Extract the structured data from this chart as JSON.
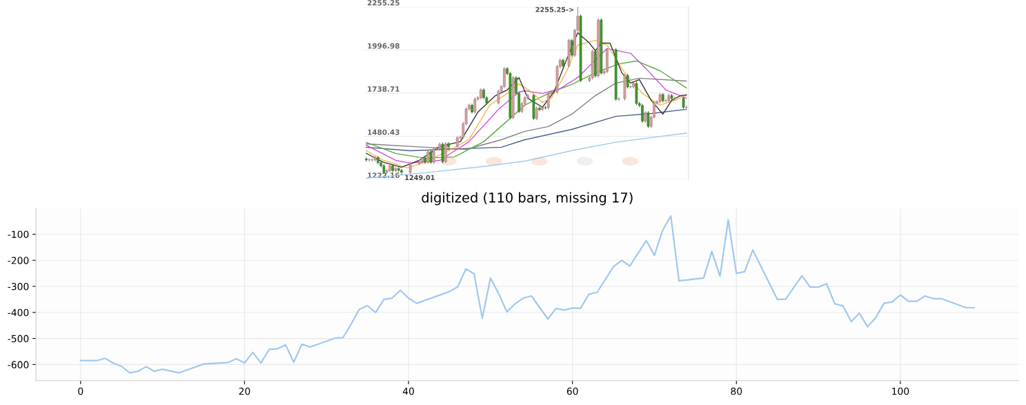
{
  "chart_data": [
    {
      "type": "candlestick",
      "categories": [
        null,
        null,
        null,
        null,
        null,
        null,
        null,
        null,
        null,
        null,
        null,
        null,
        null,
        null,
        null,
        null,
        null,
        null,
        null,
        null,
        null,
        null,
        null,
        null,
        null,
        null,
        null,
        null,
        null,
        null,
        null,
        null,
        null,
        null,
        null,
        null,
        null,
        null,
        null,
        null,
        null,
        null,
        null,
        null,
        null,
        null,
        null,
        null,
        null,
        null,
        null,
        null,
        null,
        null,
        null,
        null,
        null,
        null,
        null,
        null,
        null,
        null,
        null,
        null,
        null,
        null,
        null,
        null,
        null,
        null,
        null,
        null,
        null,
        null,
        null,
        null,
        null,
        null,
        null,
        null,
        null,
        null,
        null,
        null,
        null,
        null,
        null,
        null,
        null,
        null,
        null,
        null,
        null,
        null,
        null,
        null,
        null,
        null,
        null,
        null,
        null,
        null,
        null,
        null,
        null,
        null,
        null,
        null,
        null,
        null
      ],
      "ohlc": [
        [
          1345,
          1355,
          1329,
          1339
        ],
        [
          1339,
          1349,
          1329,
          1339
        ],
        [
          1339,
          1349,
          1329,
          1339
        ],
        [
          1339,
          1362,
          1329,
          1352
        ],
        [
          1352,
          1362,
          1313,
          1323
        ],
        [
          1323,
          1333,
          1294,
          1304
        ],
        [
          1304,
          1314,
          1255,
          1265
        ],
        [
          1265,
          1285,
          1255,
          1275
        ],
        [
          1275,
          1313,
          1265,
          1303
        ],
        [
          1303,
          1313,
          1265,
          1275
        ],
        [
          1275,
          1297,
          1265,
          1287
        ],
        [
          1287,
          1297,
          1266,
          1276
        ],
        [
          1276,
          1286,
          1249.01,
          1265
        ],
        null,
        null,
        [
          1265,
          1328,
          1255,
          1318
        ],
        null,
        null,
        [
          1318,
          1338,
          1308,
          1328
        ],
        [
          1328,
          1359,
          1318,
          1349
        ],
        [
          1349,
          1359,
          1315,
          1325
        ],
        [
          1325,
          1398,
          1315,
          1388
        ],
        [
          1388,
          1398,
          1315,
          1325
        ],
        [
          1325,
          1415,
          1315,
          1405
        ],
        [
          1405,
          1418,
          1395,
          1408
        ],
        [
          1408,
          1443,
          1398,
          1433
        ],
        [
          1433,
          1443,
          1319,
          1329
        ],
        [
          1329,
          1446,
          1319,
          1436
        ],
        [
          1436,
          1446,
          1409,
          1419
        ],
        null,
        null,
        [
          1419,
          1482,
          1409,
          1472
        ],
        [
          1472,
          1485,
          1462,
          1475
        ],
        [
          1475,
          1566,
          1465,
          1556
        ],
        [
          1556,
          1654,
          1546,
          1644
        ],
        [
          1644,
          1676,
          1634,
          1666
        ],
        [
          1666,
          1676,
          1616,
          1626
        ],
        [
          1626,
          1713,
          1616,
          1703
        ],
        [
          1703,
          1721,
          1693,
          1711
        ],
        [
          1711,
          1768,
          1701,
          1758
        ],
        [
          1758,
          1768,
          1701,
          1711
        ],
        [
          1711,
          1721,
          1670,
          1680
        ],
        null,
        null,
        null,
        [
          1680,
          1760,
          1670,
          1750
        ],
        [
          1750,
          1788,
          1740,
          1778
        ],
        [
          1778,
          1895,
          1768,
          1885
        ],
        [
          1885,
          1895,
          1846,
          1856
        ],
        [
          1856,
          1866,
          1582,
          1592
        ],
        [
          1592,
          1841,
          1582,
          1831
        ],
        [
          1831,
          1841,
          1728,
          1738
        ],
        [
          1738,
          1748,
          1619,
          1629
        ],
        [
          1629,
          1687,
          1619,
          1677
        ],
        [
          1677,
          1721,
          1667,
          1711
        ],
        [
          1711,
          1734,
          1701,
          1724
        ],
        null,
        [
          1724,
          1734,
          1577,
          1587
        ],
        [
          1587,
          1659,
          1577,
          1649
        ],
        [
          1649,
          1659,
          1630,
          1640
        ],
        [
          1640,
          1662,
          1630,
          1652
        ],
        [
          1652,
          1662,
          1641,
          1651
        ],
        [
          1651,
          1745,
          1641,
          1735
        ],
        [
          1735,
          1755,
          1725,
          1745
        ],
        null,
        [
          1745,
          1908,
          1735,
          1898
        ],
        [
          1898,
          1946,
          1888,
          1936
        ],
        [
          1936,
          1946,
          1892,
          1902
        ],
        null,
        [
          1902,
          2064,
          1892,
          2054
        ],
        [
          2054,
          2064,
          1956,
          1966
        ],
        [
          1966,
          2125,
          1956,
          2115
        ],
        [
          2115,
          2255.25,
          2105,
          2200
        ],
        [
          2200,
          2210,
          1804,
          1814
        ],
        null,
        null,
        [
          1814,
          1841,
          1804,
          1831
        ],
        [
          1831,
          1999,
          1821,
          1989
        ],
        [
          1989,
          1999,
          1832,
          1842
        ],
        [
          1842,
          2187,
          1832,
          2177
        ],
        [
          2177,
          2187,
          1849,
          1859
        ],
        [
          1859,
          1878,
          1849,
          1868
        ],
        [
          1868,
          2009,
          1858,
          1999
        ],
        null,
        null,
        [
          1999,
          2009,
          1693,
          1703
        ],
        [
          1703,
          1715,
          1693,
          1705
        ],
        null,
        [
          1705,
          1855,
          1695,
          1845
        ],
        [
          1845,
          1855,
          1766,
          1776
        ],
        [
          1776,
          1786,
          1766,
          1776
        ],
        [
          1776,
          1807,
          1766,
          1797
        ],
        [
          1797,
          1807,
          1667,
          1677
        ],
        [
          1677,
          1687,
          1655,
          1665
        ],
        [
          1665,
          1675,
          1561,
          1571
        ],
        [
          1571,
          1631,
          1561,
          1621
        ],
        [
          1621,
          1631,
          1530,
          1540
        ],
        [
          1540,
          1605,
          1530,
          1595
        ],
        [
          1595,
          1690,
          1585,
          1680
        ],
        [
          1680,
          1698,
          1670,
          1688
        ],
        [
          1688,
          1740,
          1678,
          1730
        ],
        [
          1730,
          1740,
          1683,
          1693
        ],
        [
          1693,
          1703,
          1683,
          1693
        ],
        [
          1693,
          1734,
          1683,
          1724
        ],
        [
          1724,
          1734,
          1698,
          1708
        ],
        [
          1708,
          1718,
          1698,
          1708
        ],
        null,
        null,
        [
          1708,
          1718,
          1644,
          1654
        ],
        [
          1654,
          1664,
          1644,
          1654
        ]
      ],
      "colors": [
        "#3d9a2a",
        "#d9a0a0",
        "#d9a0a0",
        "#d9a0a0",
        "#3d9a2a",
        "#3d9a2a",
        "#3d9a2a",
        "#d9a0a0",
        "#d9a0a0",
        "#3d9a2a",
        "#d9a0a0",
        "#3d9a2a",
        "#3d9a2a",
        null,
        null,
        "#d9a0a0",
        null,
        null,
        "#d9a0a0",
        "#d9a0a0",
        "#3d9a2a",
        "#d9a0a0",
        "#3d9a2a",
        "#d9a0a0",
        "#d9a0a0",
        "#d9a0a0",
        "#3d9a2a",
        "#d9a0a0",
        "#3d9a2a",
        null,
        null,
        "#d9a0a0",
        "#d9a0a0",
        "#d9a0a0",
        "#d9a0a0",
        "#d9a0a0",
        "#3d9a2a",
        "#d9a0a0",
        "#d9a0a0",
        "#d9a0a0",
        "#3d9a2a",
        "#3d9a2a",
        null,
        null,
        null,
        "#d9a0a0",
        "#d9a0a0",
        "#d9a0a0",
        "#3d9a2a",
        "#3d9a2a",
        "#d9a0a0",
        "#3d9a2a",
        "#3d9a2a",
        "#d9a0a0",
        "#d9a0a0",
        "#d9a0a0",
        null,
        "#3d9a2a",
        "#d9a0a0",
        "#3d9a2a",
        "#d9a0a0",
        "#3d9a2a",
        "#d9a0a0",
        "#d9a0a0",
        null,
        "#d9a0a0",
        "#d9a0a0",
        "#3d9a2a",
        null,
        "#d9a0a0",
        "#3d9a2a",
        "#d9a0a0",
        "#d9a0a0",
        "#3d9a2a",
        null,
        null,
        "#d9a0a0",
        "#d9a0a0",
        "#3d9a2a",
        "#d9a0a0",
        "#3d9a2a",
        "#d9a0a0",
        "#d9a0a0",
        null,
        null,
        "#3d9a2a",
        "#d9a0a0",
        null,
        "#d9a0a0",
        "#3d9a2a",
        "#d9a0a0",
        "#d9a0a0",
        "#3d9a2a",
        "#3d9a2a",
        "#3d9a2a",
        "#d9a0a0",
        "#3d9a2a",
        "#d9a0a0",
        "#d9a0a0",
        "#d9a0a0",
        "#d9a0a0",
        "#3d9a2a",
        "#d9a0a0",
        "#d9a0a0",
        "#3d9a2a",
        "#d9a0a0",
        null,
        null,
        "#3d9a2a",
        "#d9a0a0"
      ],
      "series": [
        {
          "type": "line",
          "color": "#9ccaf0",
          "values": [
            1230,
            null,
            null,
            null,
            null,
            null,
            null,
            null,
            null,
            null,
            null,
            null,
            null,
            null,
            null,
            null,
            null,
            null,
            null,
            null,
            1262,
            null,
            null,
            null,
            null,
            null,
            null,
            null,
            null,
            null,
            null,
            null,
            null,
            null,
            null,
            null,
            null,
            null,
            null,
            null,
            1300,
            null,
            null,
            null,
            null,
            null,
            null,
            null,
            null,
            null,
            null,
            null,
            null,
            null,
            1332,
            null,
            null,
            null,
            null,
            null,
            null,
            null,
            null,
            null,
            null,
            null,
            null,
            null,
            null,
            null,
            1395,
            null,
            null,
            null,
            null,
            null,
            null,
            null,
            null,
            null,
            null,
            null,
            null,
            null,
            null,
            1445,
            null,
            null,
            null,
            null,
            null,
            null,
            null,
            null,
            null,
            null,
            null,
            null,
            null,
            null,
            null,
            null,
            null,
            null,
            null,
            null,
            null,
            null,
            null,
            1500
          ]
        },
        {
          "type": "line",
          "color": "#4a5f8f",
          "values": [
            1415,
            null,
            null,
            null,
            null,
            null,
            null,
            null,
            null,
            null,
            null,
            null,
            null,
            null,
            null,
            1394,
            null,
            null,
            null,
            null,
            null,
            null,
            null,
            null,
            null,
            null,
            null,
            null,
            null,
            null,
            null,
            null,
            null,
            null,
            null,
            null,
            null,
            null,
            null,
            null,
            null,
            null,
            null,
            null,
            null,
            null,
            1415,
            null,
            null,
            null,
            null,
            null,
            null,
            null,
            1460,
            null,
            null,
            null,
            null,
            null,
            null,
            null,
            null,
            null,
            null,
            null,
            null,
            null,
            null,
            null,
            1522,
            null,
            null,
            null,
            null,
            null,
            null,
            null,
            null,
            null,
            null,
            null,
            null,
            null,
            null,
            1600,
            null,
            null,
            null,
            null,
            null,
            null,
            null,
            null,
            null,
            null,
            null,
            1617,
            null,
            null,
            null,
            null,
            null,
            null,
            null,
            null,
            null,
            null,
            null,
            1642
          ]
        },
        {
          "type": "line",
          "color": "#808080",
          "values": [
            1435,
            null,
            null,
            null,
            null,
            null,
            null,
            null,
            null,
            null,
            null,
            null,
            null,
            null,
            null,
            null,
            null,
            null,
            null,
            null,
            1415,
            null,
            null,
            null,
            null,
            null,
            null,
            null,
            null,
            null,
            null,
            null,
            null,
            null,
            1402,
            null,
            null,
            null,
            null,
            null,
            null,
            null,
            null,
            null,
            null,
            null,
            1460,
            null,
            null,
            null,
            null,
            null,
            null,
            null,
            1510,
            null,
            null,
            null,
            null,
            null,
            null,
            null,
            1539,
            null,
            null,
            null,
            null,
            null,
            null,
            null,
            1613,
            null,
            null,
            null,
            null,
            null,
            null,
            null,
            1724,
            null,
            null,
            null,
            null,
            null,
            null,
            1799,
            null,
            null,
            null,
            null,
            null,
            null,
            null,
            1828,
            null,
            null,
            null,
            null,
            null,
            null,
            null,
            null,
            null,
            null,
            null,
            null,
            null,
            null,
            null,
            1811
          ]
        },
        {
          "type": "line",
          "color": "#5aaa40",
          "values": [
            1444,
            null,
            null,
            null,
            null,
            null,
            null,
            null,
            null,
            null,
            1378,
            null,
            null,
            null,
            null,
            null,
            null,
            null,
            null,
            null,
            1349,
            null,
            null,
            null,
            null,
            null,
            null,
            null,
            null,
            null,
            1357,
            null,
            null,
            null,
            null,
            null,
            null,
            null,
            null,
            null,
            1448,
            null,
            null,
            null,
            null,
            null,
            null,
            null,
            1572,
            null,
            null,
            null,
            null,
            null,
            1667,
            null,
            null,
            null,
            null,
            null,
            null,
            null,
            1737,
            null,
            null,
            null,
            null,
            null,
            null,
            null,
            1791,
            null,
            null,
            null,
            null,
            null,
            null,
            null,
            1861,
            null,
            null,
            null,
            null,
            null,
            null,
            null,
            1914,
            null,
            null,
            null,
            null,
            null,
            1931,
            null,
            null,
            null,
            null,
            null,
            null,
            null,
            1873,
            null,
            null,
            null,
            null,
            null,
            null,
            null,
            null,
            1770
          ]
        },
        {
          "type": "line",
          "color": "#d050d8",
          "values": [
            1427,
            null,
            null,
            null,
            null,
            null,
            null,
            null,
            null,
            null,
            1336,
            null,
            null,
            null,
            null,
            1320,
            null,
            null,
            null,
            null,
            null,
            null,
            null,
            null,
            null,
            1336,
            null,
            null,
            null,
            null,
            null,
            null,
            null,
            null,
            null,
            1448,
            null,
            null,
            null,
            null,
            null,
            null,
            null,
            null,
            null,
            1642,
            null,
            null,
            null,
            null,
            null,
            null,
            1745,
            null,
            1753,
            null,
            null,
            null,
            null,
            null,
            1737,
            null,
            null,
            null,
            null,
            null,
            1766,
            null,
            null,
            null,
            null,
            null,
            1832,
            null,
            null,
            null,
            null,
            null,
            null,
            null,
            null,
            null,
            2006,
            null,
            null,
            null,
            null,
            null,
            null,
            null,
            1977,
            null,
            null,
            null,
            null,
            1890,
            null,
            null,
            null,
            null,
            null,
            null,
            1758,
            null,
            null,
            null,
            null,
            null,
            null,
            1708
          ]
        },
        {
          "type": "line",
          "color": "#f5b94a",
          "values": [
            1394,
            null,
            null,
            null,
            null,
            null,
            1336,
            null,
            null,
            null,
            null,
            null,
            null,
            null,
            1291,
            null,
            null,
            null,
            null,
            null,
            1324,
            null,
            null,
            null,
            null,
            null,
            null,
            null,
            1394,
            null,
            null,
            null,
            null,
            null,
            null,
            1460,
            null,
            null,
            null,
            null,
            null,
            null,
            1667,
            null,
            null,
            null,
            null,
            null,
            1737,
            null,
            null,
            null,
            1795,
            null,
            null,
            null,
            1749,
            null,
            null,
            null,
            1683,
            null,
            null,
            1708,
            null,
            null,
            null,
            null,
            1861,
            null,
            null,
            null,
            2026,
            null,
            null,
            null,
            null,
            null,
            2055,
            null,
            null,
            null,
            2026,
            null,
            null,
            null,
            null,
            null,
            1861,
            null,
            null,
            null,
            null,
            null,
            1737,
            null,
            null,
            null,
            null,
            null,
            1667,
            null,
            null,
            null,
            null,
            1696,
            null,
            null,
            null,
            1724
          ]
        },
        {
          "type": "line",
          "color": "#333333",
          "values": [
            1378,
            null,
            null,
            null,
            null,
            null,
            1324,
            null,
            null,
            null,
            null,
            null,
            1295,
            null,
            null,
            null,
            null,
            null,
            1336,
            null,
            null,
            null,
            null,
            null,
            null,
            1419,
            null,
            null,
            null,
            null,
            null,
            null,
            1448,
            null,
            null,
            null,
            null,
            null,
            1625,
            null,
            null,
            null,
            null,
            null,
            1724,
            null,
            null,
            null,
            1758,
            null,
            null,
            null,
            1832,
            null,
            null,
            1708,
            null,
            null,
            null,
            null,
            1654,
            null,
            null,
            null,
            1749,
            null,
            null,
            null,
            1931,
            null,
            null,
            null,
            2100,
            null,
            null,
            null,
            2038,
            null,
            1993,
            null,
            2038,
            null,
            null,
            2038,
            null,
            null,
            null,
            1861,
            null,
            null,
            1799,
            null,
            null,
            1820,
            null,
            null,
            null,
            1696,
            null,
            null,
            null,
            1613,
            null,
            null,
            1696,
            null,
            null,
            1724,
            null,
            1728
          ]
        }
      ],
      "ylim": [
        1222.16,
        2255.25
      ],
      "yticks": [
        1222.16,
        1480.43,
        1738.71,
        1996.98,
        2255.25
      ],
      "grid": "y",
      "tick_labels": "y",
      "annotations": [
        "2255.25->",
        "1249.01"
      ]
    },
    {
      "type": "line",
      "title": "digitized (110 bars, missing 17)",
      "series": [
        {
          "color": "#a0c8f0",
          "x": [
            0,
            1,
            2,
            3,
            4,
            5,
            6,
            7,
            8,
            9,
            10,
            11,
            12,
            15,
            18,
            19,
            20,
            21,
            22,
            23,
            24,
            25,
            26,
            27,
            28,
            31,
            32,
            33,
            34,
            35,
            36,
            37,
            38,
            39,
            40,
            41,
            45,
            46,
            47,
            48,
            49,
            50,
            51,
            52,
            53,
            54,
            55,
            57,
            58,
            59,
            60,
            61,
            62,
            63,
            65,
            66,
            67,
            69,
            70,
            71,
            72,
            73,
            76,
            77,
            78,
            79,
            80,
            81,
            82,
            85,
            86,
            88,
            89,
            90,
            91,
            92,
            93,
            94,
            95,
            96,
            97,
            98,
            99,
            100,
            101,
            102,
            103,
            104,
            105,
            108,
            109
          ],
          "values": [
            -585,
            -585,
            -585,
            -576,
            -595,
            -607,
            -632,
            -626,
            -608,
            -626,
            -618,
            -625,
            -632,
            -598,
            -592,
            -578,
            -594,
            -553,
            -594,
            -542,
            -540,
            -524,
            -591,
            -522,
            -533,
            -499,
            -497,
            -445,
            -388,
            -374,
            -400,
            -350,
            -345,
            -315,
            -345,
            -365,
            -320,
            -302,
            -233,
            -252,
            -422,
            -268,
            -328,
            -398,
            -367,
            -345,
            -337,
            -425,
            -385,
            -391,
            -383,
            -384,
            -330,
            -323,
            -225,
            -200,
            -222,
            -124,
            -181,
            -85,
            -30,
            -279,
            -268,
            -166,
            -261,
            -45,
            -250,
            -244,
            -160,
            -350,
            -349,
            -259,
            -303,
            -303,
            -290,
            -367,
            -375,
            -435,
            -403,
            -455,
            -420,
            -365,
            -360,
            -333,
            -357,
            -357,
            -337,
            -347,
            -347,
            -382,
            -382
          ]
        }
      ],
      "xlim": [
        -5.45,
        114.45
      ],
      "xticks": [
        0,
        20,
        40,
        60,
        80,
        100
      ],
      "ylim": [
        -662,
        0
      ],
      "yticks": [
        -600,
        -500,
        -400,
        -300,
        -200,
        -100
      ],
      "grid": true
    }
  ]
}
